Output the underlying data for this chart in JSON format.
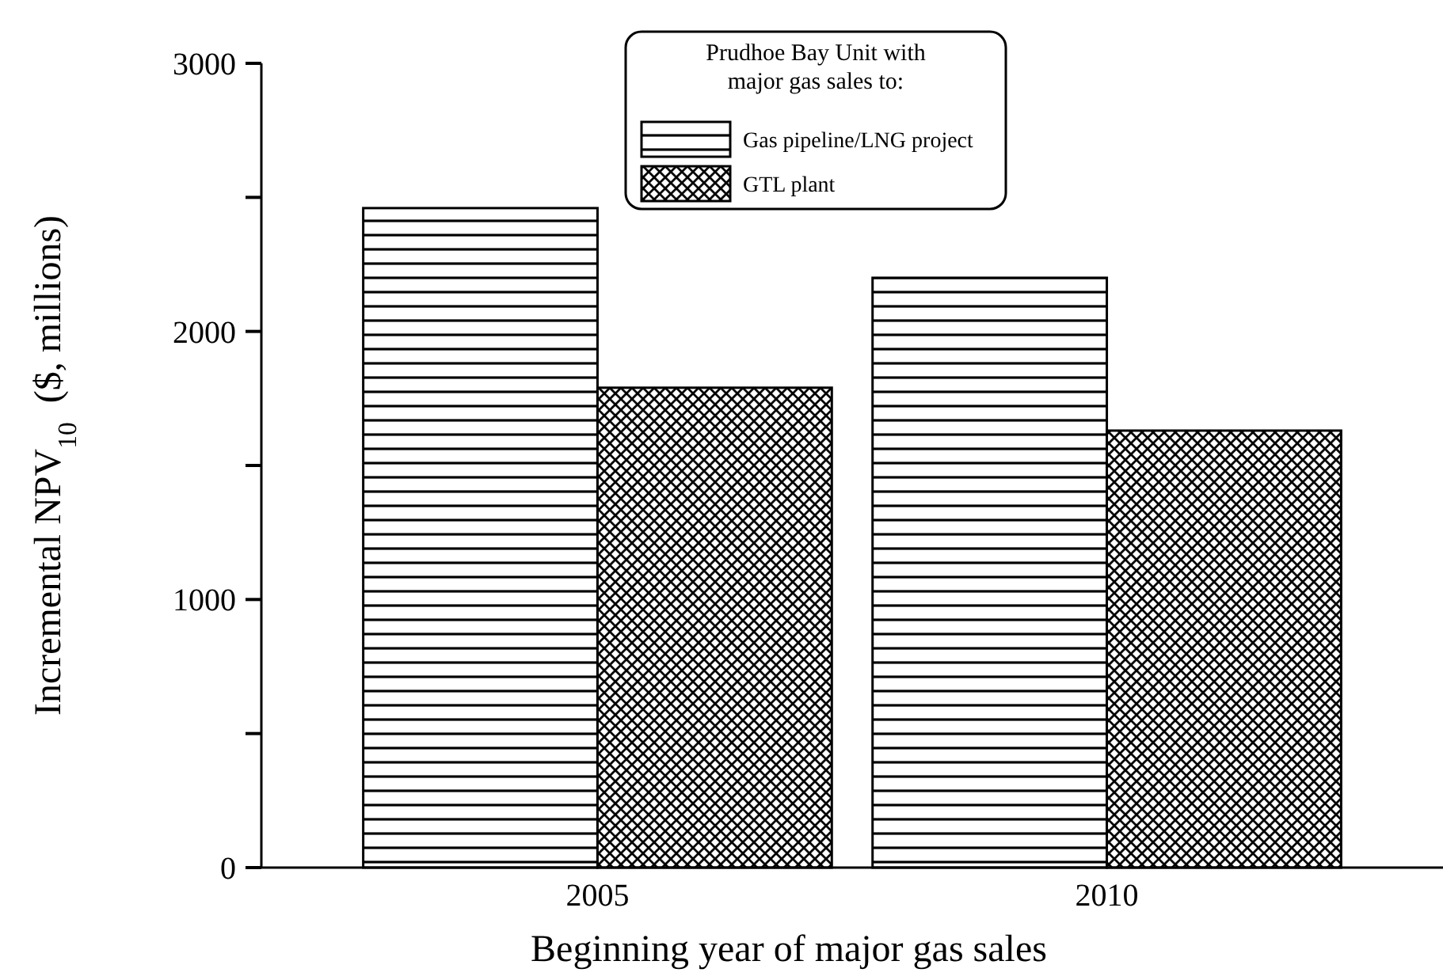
{
  "chart_data": {
    "type": "bar",
    "categories": [
      "2005",
      "2010"
    ],
    "series": [
      {
        "name": "Gas pipeline/LNG project",
        "color": "#000000",
        "values": [
          2460,
          2200
        ]
      },
      {
        "name": "GTL plant",
        "color": "#000000",
        "values": [
          1790,
          1630
        ]
      }
    ],
    "xlabel": "Beginning year of major gas sales",
    "ylabel": "Incremental NPV$_{10}$  ($, millions)",
    "legend_title": "Prudhoe Bay Unit with\nmajor gas sales to:",
    "legend": "top",
    "ylim": [
      0,
      3000
    ],
    "yticks": [
      0,
      {
        "value": 500,
        "label": null
      },
      1000,
      {
        "value": 1500,
        "label": null
      },
      2000,
      {
        "value": 2500,
        "label": null
      },
      3000
    ]
  }
}
